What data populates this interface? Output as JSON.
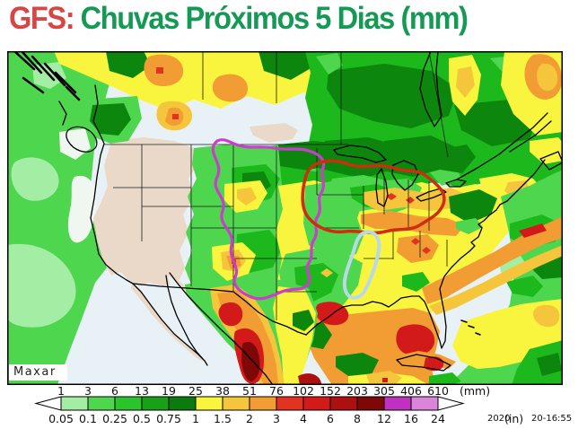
{
  "title": {
    "model": "GFS:",
    "main": "Chuvas Próximos 5 Dias (mm)"
  },
  "map": {
    "watermark": "Maxar"
  },
  "legend": {
    "mm_ticks": [
      "1",
      "3",
      "6",
      "13",
      "19",
      "25",
      "38",
      "51",
      "76",
      "102",
      "152",
      "203",
      "305",
      "406",
      "610"
    ],
    "mm_unit": "(mm)",
    "in_ticks": [
      "0.05",
      "0.1",
      "0.25",
      "0.5",
      "0.75",
      "1",
      "1.5",
      "2",
      "3",
      "4",
      "6",
      "8",
      "12",
      "16",
      "24"
    ],
    "in_unit": "(in)",
    "colors": [
      "#a4eda4",
      "#4fd64f",
      "#2cc42c",
      "#18a018",
      "#0c7a0c",
      "#f9f53f",
      "#f5c53c",
      "#f29d33",
      "#e23222",
      "#d31a1a",
      "#ad1010",
      "#7e0707",
      "#bf31bf",
      "#da85da"
    ],
    "timestamp": {
      "year": "2020",
      "time": "20-16:55"
    }
  },
  "palette": {
    "title_red": "#d84545",
    "title_green": "#159a55",
    "ocean": "#e8f2f6",
    "pale": "#f0f6f0",
    "beige": "#ead9c8",
    "g1": "#a4eda4",
    "g2": "#4fd64f",
    "g3": "#1cb81c",
    "g4": "#0c860c",
    "yellow": "#f9f53f",
    "gold": "#f5c53c",
    "orange": "#f29d33",
    "red1": "#e23222",
    "red2": "#d31a1a",
    "red3": "#ad1010",
    "maroon": "#7e0707",
    "contour_magenta": "#c93fc9",
    "contour_red": "#cf2d0e",
    "contour_blue": "#b7d9e8",
    "coast": "#000000",
    "border": "#1a1a1a",
    "tick_text": "#111111"
  }
}
